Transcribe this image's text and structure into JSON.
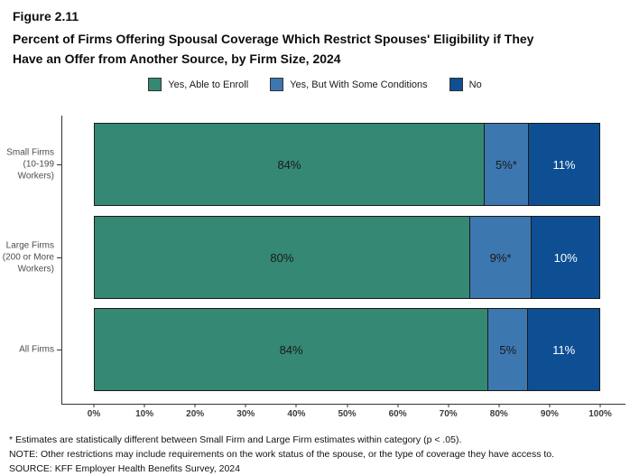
{
  "figure_label": "Figure 2.11",
  "title_line1": "Percent of Firms Offering Spousal Coverage Which Restrict Spouses' Eligibility if They",
  "title_line2": "Have an Offer from Another Source, by Firm Size, 2024",
  "footnotes": [
    "* Estimates are statistically different between Small Firm and Large Firm estimates within category (p < .05).",
    "NOTE: Other restrictions may include requirements on the work status of the spouse, or the type of coverage they have access to.",
    "SOURCE: KFF Employer Health Benefits Survey, 2024"
  ],
  "chart_data": {
    "type": "bar",
    "orientation": "horizontal",
    "stacked": true,
    "title": "Percent of Firms Offering Spousal Coverage Which Restrict Spouses' Eligibility if They Have an Offer from Another Source, by Firm Size, 2024",
    "categories": [
      "Small Firms (10-199 Workers)",
      "Large Firms (200 or More Workers)",
      "All Firms"
    ],
    "categories_display": [
      [
        "Small Firms",
        "(10-199",
        "Workers)"
      ],
      [
        "Large Firms",
        "(200 or More",
        "Workers)"
      ],
      [
        "All Firms"
      ]
    ],
    "series": [
      {
        "name": "Yes, Able to Enroll",
        "color": "#358873",
        "values": [
          84,
          80,
          84
        ],
        "labels": [
          "84%",
          "80%",
          "84%"
        ],
        "label_color": "#1a1a1a"
      },
      {
        "name": "Yes, But With Some Conditions",
        "color": "#3d77b0",
        "values": [
          5,
          9,
          5
        ],
        "labels": [
          "5%*",
          "9%*",
          "5%"
        ],
        "label_color": "#1a1a1a"
      },
      {
        "name": "No",
        "color": "#0e4f94",
        "values": [
          11,
          10,
          11
        ],
        "labels": [
          "11%",
          "10%",
          "11%"
        ],
        "label_color": "#ffffff"
      }
    ],
    "xlabel": "",
    "ylabel": "",
    "xlim": [
      0,
      100
    ],
    "x_ticks": [
      "0%",
      "10%",
      "20%",
      "30%",
      "40%",
      "50%",
      "60%",
      "70%",
      "80%",
      "90%",
      "100%"
    ],
    "grid": false,
    "legend_position": "top"
  }
}
